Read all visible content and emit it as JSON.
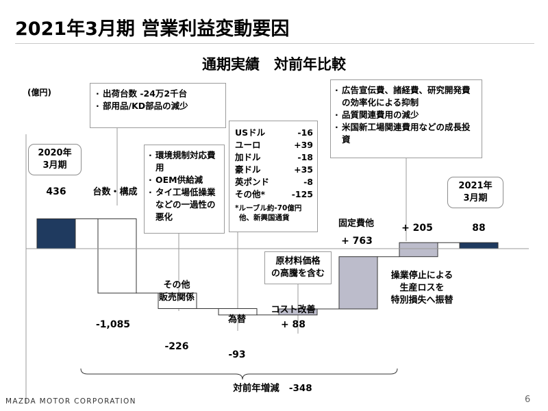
{
  "title": "2021年3月期 営業利益変動要因",
  "subtitle": "通期実績　対前年比較",
  "unit": "(億円)",
  "start_label": [
    "2020年",
    "3月期"
  ],
  "end_label": [
    "2021年",
    "3月期"
  ],
  "notes": {
    "volume": [
      "出荷台数 -24万2千台",
      "部用品/KD部品の減少"
    ],
    "other_sales": [
      "環境規制対応費用",
      "OEM供給減",
      "タイ工場低操業などの一過性の悪化"
    ],
    "fx": {
      "rows": [
        {
          "currency": "USドル",
          "value": "-16"
        },
        {
          "currency": "ユーロ",
          "value": "+39"
        },
        {
          "currency": "加ドル",
          "value": "-18"
        },
        {
          "currency": "豪ドル",
          "value": "+35"
        },
        {
          "currency": "英ポンド",
          "value": "-8"
        },
        {
          "currency": "その他*",
          "value": "-125"
        }
      ],
      "footnote": [
        "*ルーブル約-70億円",
        "他、新興国通貨"
      ]
    },
    "raw_materials": [
      "原材料価格",
      "の高騰を含む"
    ],
    "fixed_costs": [
      "広告宣伝費、諸経費、研究開発費の効率化による抑制",
      "品質関連費用の減少",
      "米国新工場関連費用などの成長投資"
    ]
  },
  "chart_data": {
    "type": "waterfall",
    "bars": [
      {
        "category": "2020年3月期",
        "value": 436,
        "label": "436",
        "kind": "total"
      },
      {
        "category": "台数・構成",
        "value": -1085,
        "label": "-1,085",
        "kind": "decrease"
      },
      {
        "category": "その他販売関係",
        "value": -226,
        "label": "-226",
        "kind": "decrease"
      },
      {
        "category": "為替",
        "value": -93,
        "label": "-93",
        "kind": "decrease"
      },
      {
        "category": "コスト改善",
        "value": 88,
        "label": "+ 88",
        "kind": "increase"
      },
      {
        "category": "固定費他",
        "value": 763,
        "label": "+ 763",
        "kind": "increase"
      },
      {
        "category": "操業停止による生産ロスを特別損失へ振替",
        "value": 205,
        "label": "+ 205",
        "kind": "increase"
      },
      {
        "category": "2021年3月期",
        "value": 88,
        "label": "88",
        "kind": "total"
      }
    ],
    "category_labels": {
      "volume": "台数・構成",
      "other_sales": [
        "その他",
        "販売関係"
      ],
      "fx": "為替",
      "cost": "コスト改善",
      "fixed": "固定費他",
      "stoppage": [
        "操業停止による",
        "生産ロスを",
        "特別損失へ振替"
      ]
    },
    "total_change": {
      "label": "対前年増減",
      "value": "-348"
    },
    "colors": {
      "total": "#1f3a5f",
      "increase": "#bcbccb",
      "decrease": "#ffffff",
      "edge": "#333333"
    }
  },
  "footer": {
    "logo": "MAZDA MOTOR CORPORATION",
    "page": "6"
  }
}
